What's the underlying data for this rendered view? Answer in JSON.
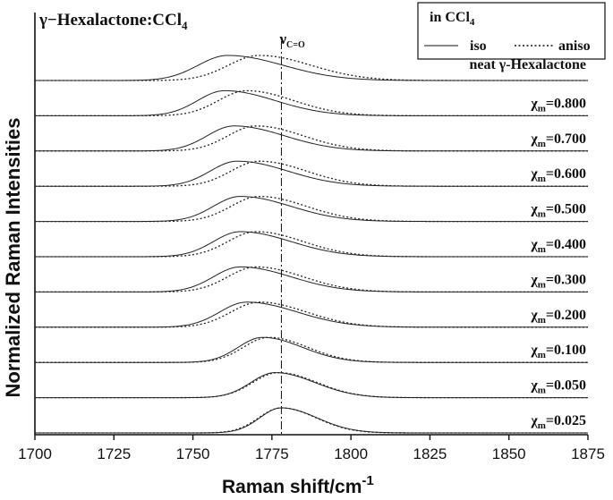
{
  "chart_data": {
    "type": "line",
    "title": "γ−Hexalactone:CCl",
    "title_sub": "4",
    "xlabel": "Raman shift/cm",
    "xlabel_sup": "-1",
    "ylabel": "Normalized Raman Intensities",
    "xlim": [
      1700,
      1875
    ],
    "x_ticks": [
      "1700",
      "1725",
      "1750",
      "1775",
      "1800",
      "1825",
      "1850",
      "1875"
    ],
    "reference_line": {
      "x": 1778,
      "label": "ν",
      "label_sub": "C=O"
    },
    "legend": {
      "position": "top-right",
      "title": "in CCl",
      "title_sub": "4",
      "entries": [
        {
          "name": "iso",
          "style": "solid"
        },
        {
          "name": "aniso",
          "style": "dotted"
        }
      ]
    },
    "grid": false,
    "series": [
      {
        "label": "neat γ-Hexalactone",
        "iso_peak": 1761,
        "aniso_peak": 1771,
        "width": 11
      },
      {
        "label": "=0.800",
        "iso_peak": 1760,
        "aniso_peak": 1767,
        "width": 10
      },
      {
        "label": "=0.700",
        "iso_peak": 1763,
        "aniso_peak": 1770,
        "width": 10
      },
      {
        "label": "=0.600",
        "iso_peak": 1764,
        "aniso_peak": 1771,
        "width": 10
      },
      {
        "label": "=0.500",
        "iso_peak": 1765,
        "aniso_peak": 1771,
        "width": 10
      },
      {
        "label": "=0.400",
        "iso_peak": 1765,
        "aniso_peak": 1770,
        "width": 10
      },
      {
        "label": "=0.300",
        "iso_peak": 1765,
        "aniso_peak": 1770,
        "width": 10
      },
      {
        "label": "=0.200",
        "iso_peak": 1767,
        "aniso_peak": 1771,
        "width": 10
      },
      {
        "label": "=0.100",
        "iso_peak": 1772,
        "aniso_peak": 1774,
        "width": 9
      },
      {
        "label": "=0.050",
        "iso_peak": 1776,
        "aniso_peak": 1777,
        "width": 9
      },
      {
        "label": "=0.025",
        "iso_peak": 1778,
        "aniso_peak": 1778,
        "width": 8
      }
    ],
    "series_label_symbol": "χ",
    "series_label_sub": "m"
  }
}
